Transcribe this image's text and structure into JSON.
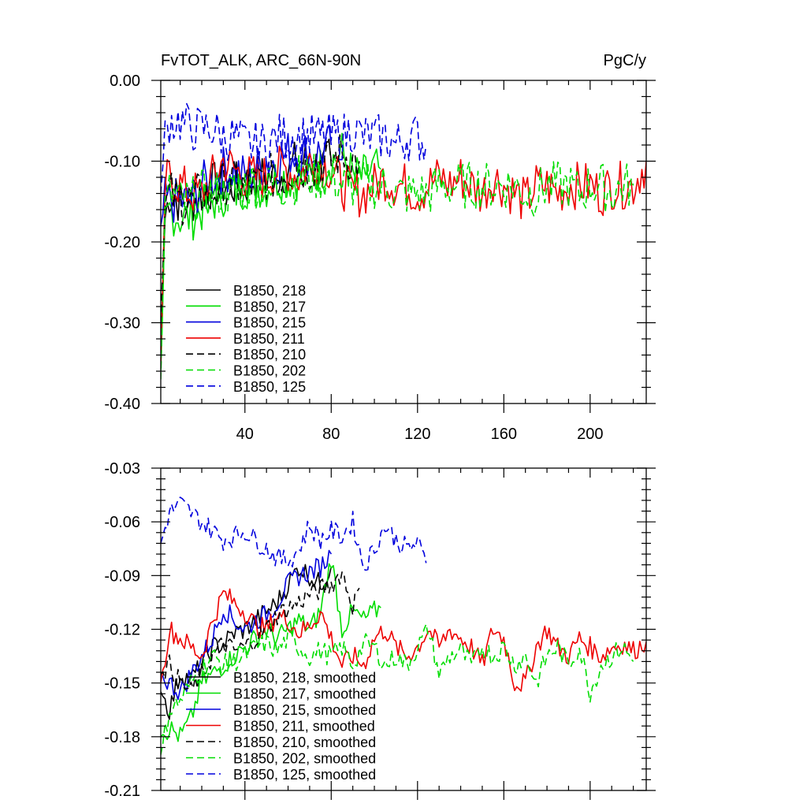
{
  "chart_data": [
    {
      "type": "line",
      "title": "FvTOT_ALK, ARC_66N-90N",
      "units": "PgC/y",
      "xlabel": "",
      "ylabel": "",
      "xlim": [
        1,
        226
      ],
      "ylim": [
        -0.4,
        0.0
      ],
      "xticks": [
        40,
        80,
        120,
        160,
        200
      ],
      "xtick_labels": [
        "40",
        "80",
        "120",
        "160",
        "200"
      ],
      "yticks": [
        0.0,
        -0.1,
        -0.2,
        -0.3,
        -0.4
      ],
      "ytick_labels": [
        "0.00",
        "-0.10",
        "-0.20",
        "-0.30",
        "-0.40"
      ],
      "legend_position": "bottom-left",
      "series": [
        {
          "name": "B1850, 218",
          "color": "#000000",
          "dash": "solid",
          "x": [
            1,
            3,
            5,
            10,
            15,
            20,
            25,
            30,
            35,
            40,
            45,
            50,
            55,
            60,
            65,
            70,
            75,
            80
          ],
          "y": [
            -0.33,
            -0.17,
            -0.14,
            -0.15,
            -0.15,
            -0.14,
            -0.13,
            -0.13,
            -0.13,
            -0.13,
            -0.12,
            -0.12,
            -0.12,
            -0.11,
            -0.1,
            -0.1,
            -0.11,
            -0.1
          ]
        },
        {
          "name": "B1850, 217",
          "color": "#00dd00",
          "dash": "solid",
          "x": [
            1,
            3,
            5,
            10,
            15,
            20,
            25,
            30,
            35,
            40,
            45,
            50,
            55,
            60,
            65,
            70,
            75,
            80,
            85,
            90,
            95,
            100,
            103
          ],
          "y": [
            -0.36,
            -0.18,
            -0.16,
            -0.17,
            -0.17,
            -0.16,
            -0.15,
            -0.14,
            -0.14,
            -0.13,
            -0.13,
            -0.13,
            -0.12,
            -0.12,
            -0.12,
            -0.12,
            -0.11,
            -0.1,
            -0.09,
            -0.12,
            -0.12,
            -0.11,
            -0.11
          ]
        },
        {
          "name": "B1850, 215",
          "color": "#0000dd",
          "dash": "solid",
          "x": [
            1,
            3,
            5,
            10,
            15,
            20,
            25,
            30,
            35,
            40,
            45,
            50,
            55,
            60,
            65,
            70,
            75,
            80
          ],
          "y": [
            -0.18,
            -0.15,
            -0.15,
            -0.15,
            -0.15,
            -0.13,
            -0.12,
            -0.11,
            -0.11,
            -0.12,
            -0.11,
            -0.1,
            -0.1,
            -0.09,
            -0.09,
            -0.09,
            -0.09,
            -0.08
          ]
        },
        {
          "name": "B1850, 211",
          "color": "#ee0000",
          "dash": "solid",
          "x": [
            1,
            3,
            5,
            10,
            15,
            20,
            25,
            30,
            35,
            40,
            45,
            50,
            55,
            60,
            65,
            70,
            75,
            80,
            85,
            90,
            95,
            100,
            105,
            110,
            115,
            120,
            125,
            130,
            135,
            140,
            145,
            150,
            155,
            160,
            165,
            170,
            175,
            180,
            185,
            190,
            195,
            200,
            205,
            210,
            215,
            220,
            226
          ],
          "y": [
            -0.35,
            -0.13,
            -0.12,
            -0.13,
            -0.14,
            -0.14,
            -0.12,
            -0.1,
            -0.11,
            -0.12,
            -0.12,
            -0.12,
            -0.11,
            -0.11,
            -0.12,
            -0.1,
            -0.1,
            -0.11,
            -0.13,
            -0.14,
            -0.14,
            -0.13,
            -0.12,
            -0.13,
            -0.13,
            -0.14,
            -0.13,
            -0.12,
            -0.13,
            -0.12,
            -0.13,
            -0.14,
            -0.12,
            -0.13,
            -0.14,
            -0.15,
            -0.13,
            -0.13,
            -0.14,
            -0.13,
            -0.13,
            -0.13,
            -0.14,
            -0.13,
            -0.13,
            -0.13,
            -0.1
          ]
        },
        {
          "name": "B1850, 210",
          "color": "#000000",
          "dash": "dashed",
          "x": [
            1,
            3,
            5,
            10,
            15,
            20,
            25,
            30,
            35,
            40,
            45,
            50,
            55,
            60,
            65,
            70,
            75,
            80,
            85,
            90,
            93
          ],
          "y": [
            -0.3,
            -0.16,
            -0.14,
            -0.15,
            -0.15,
            -0.14,
            -0.14,
            -0.13,
            -0.13,
            -0.13,
            -0.13,
            -0.12,
            -0.12,
            -0.11,
            -0.11,
            -0.11,
            -0.1,
            -0.1,
            -0.09,
            -0.1,
            -0.1
          ]
        },
        {
          "name": "B1850, 202",
          "color": "#00dd00",
          "dash": "dashed",
          "x": [
            1,
            3,
            5,
            10,
            15,
            20,
            25,
            30,
            35,
            40,
            45,
            50,
            55,
            60,
            65,
            70,
            75,
            80,
            85,
            90,
            95,
            100,
            105,
            110,
            115,
            120,
            125,
            130,
            135,
            140,
            145,
            150,
            155,
            160,
            165,
            170,
            175,
            180,
            185,
            190,
            195,
            200,
            205,
            210,
            215,
            220
          ],
          "y": [
            -0.37,
            -0.16,
            -0.14,
            -0.15,
            -0.15,
            -0.14,
            -0.14,
            -0.14,
            -0.14,
            -0.13,
            -0.13,
            -0.13,
            -0.13,
            -0.13,
            -0.12,
            -0.12,
            -0.12,
            -0.12,
            -0.13,
            -0.13,
            -0.13,
            -0.13,
            -0.13,
            -0.14,
            -0.14,
            -0.14,
            -0.14,
            -0.13,
            -0.13,
            -0.13,
            -0.13,
            -0.13,
            -0.13,
            -0.13,
            -0.13,
            -0.14,
            -0.14,
            -0.13,
            -0.13,
            -0.13,
            -0.14,
            -0.13,
            -0.13,
            -0.14,
            -0.13,
            -0.13
          ]
        },
        {
          "name": "B1850, 125",
          "color": "#0000dd",
          "dash": "dashed",
          "x": [
            1,
            3,
            5,
            10,
            15,
            20,
            25,
            30,
            35,
            40,
            45,
            50,
            55,
            60,
            65,
            70,
            75,
            80,
            85,
            90,
            95,
            100,
            105,
            110,
            115,
            120,
            124
          ],
          "y": [
            -0.14,
            -0.07,
            -0.05,
            -0.05,
            -0.06,
            -0.06,
            -0.06,
            -0.07,
            -0.07,
            -0.08,
            -0.08,
            -0.08,
            -0.07,
            -0.07,
            -0.07,
            -0.07,
            -0.07,
            -0.07,
            -0.07,
            -0.06,
            -0.07,
            -0.07,
            -0.07,
            -0.08,
            -0.07,
            -0.07,
            -0.08
          ]
        }
      ]
    },
    {
      "type": "line",
      "title": "",
      "xlabel": "",
      "ylabel": "",
      "xlim": [
        1,
        226
      ],
      "ylim": [
        -0.21,
        -0.03
      ],
      "yticks": [
        -0.03,
        -0.06,
        -0.09,
        -0.12,
        -0.15,
        -0.18,
        -0.21
      ],
      "ytick_labels": [
        "-0.03",
        "-0.06",
        "-0.09",
        "-0.12",
        "-0.15",
        "-0.18",
        "-0.21"
      ],
      "legend_position": "bottom-left",
      "series": [
        {
          "name": "B1850, 218, smoothed",
          "color": "#000000",
          "dash": "solid",
          "x": [
            1,
            5,
            10,
            15,
            20,
            25,
            30,
            35,
            40,
            45,
            50,
            55,
            60,
            65,
            70,
            75,
            80
          ],
          "y": [
            -0.155,
            -0.165,
            -0.145,
            -0.148,
            -0.14,
            -0.13,
            -0.128,
            -0.122,
            -0.12,
            -0.115,
            -0.11,
            -0.105,
            -0.095,
            -0.085,
            -0.09,
            -0.095,
            -0.085
          ]
        },
        {
          "name": "B1850, 217, smoothed",
          "color": "#00dd00",
          "dash": "solid",
          "x": [
            1,
            5,
            10,
            15,
            20,
            25,
            30,
            35,
            40,
            45,
            50,
            55,
            60,
            65,
            70,
            75,
            80,
            85,
            90,
            95,
            100,
            103
          ],
          "y": [
            -0.18,
            -0.175,
            -0.18,
            -0.17,
            -0.15,
            -0.145,
            -0.14,
            -0.135,
            -0.13,
            -0.125,
            -0.12,
            -0.125,
            -0.12,
            -0.115,
            -0.12,
            -0.11,
            -0.08,
            -0.12,
            -0.11,
            -0.115,
            -0.11,
            -0.108
          ]
        },
        {
          "name": "B1850, 215, smoothed",
          "color": "#0000dd",
          "dash": "solid",
          "x": [
            1,
            5,
            10,
            15,
            20,
            25,
            30,
            35,
            40,
            45,
            50,
            55,
            60,
            65,
            70,
            75,
            80
          ],
          "y": [
            -0.145,
            -0.15,
            -0.155,
            -0.145,
            -0.135,
            -0.125,
            -0.108,
            -0.115,
            -0.12,
            -0.115,
            -0.112,
            -0.105,
            -0.095,
            -0.09,
            -0.088,
            -0.085,
            -0.078
          ]
        },
        {
          "name": "B1850, 211, smoothed",
          "color": "#ee0000",
          "dash": "solid",
          "x": [
            1,
            5,
            10,
            15,
            20,
            25,
            30,
            35,
            40,
            45,
            50,
            55,
            60,
            65,
            70,
            75,
            80,
            85,
            90,
            95,
            100,
            105,
            110,
            115,
            120,
            125,
            130,
            135,
            140,
            145,
            150,
            155,
            160,
            165,
            170,
            175,
            180,
            185,
            190,
            195,
            200,
            205,
            210,
            215,
            220,
            226
          ],
          "y": [
            -0.15,
            -0.12,
            -0.125,
            -0.13,
            -0.135,
            -0.115,
            -0.1,
            -0.105,
            -0.11,
            -0.118,
            -0.12,
            -0.112,
            -0.115,
            -0.122,
            -0.118,
            -0.11,
            -0.125,
            -0.14,
            -0.135,
            -0.14,
            -0.125,
            -0.12,
            -0.13,
            -0.135,
            -0.13,
            -0.12,
            -0.13,
            -0.12,
            -0.125,
            -0.13,
            -0.14,
            -0.12,
            -0.125,
            -0.15,
            -0.15,
            -0.13,
            -0.12,
            -0.13,
            -0.135,
            -0.125,
            -0.13,
            -0.135,
            -0.13,
            -0.128,
            -0.132,
            -0.127
          ]
        },
        {
          "name": "B1850, 210, smoothed",
          "color": "#000000",
          "dash": "dashed",
          "x": [
            1,
            5,
            10,
            15,
            20,
            25,
            30,
            35,
            40,
            45,
            50,
            55,
            60,
            65,
            70,
            75,
            80,
            85,
            90,
            93
          ],
          "y": [
            -0.145,
            -0.14,
            -0.15,
            -0.155,
            -0.145,
            -0.135,
            -0.128,
            -0.132,
            -0.13,
            -0.125,
            -0.12,
            -0.112,
            -0.108,
            -0.105,
            -0.1,
            -0.098,
            -0.095,
            -0.088,
            -0.107,
            -0.097
          ]
        },
        {
          "name": "B1850, 202, smoothed",
          "color": "#00dd00",
          "dash": "dashed",
          "x": [
            1,
            5,
            10,
            15,
            20,
            25,
            30,
            35,
            40,
            45,
            50,
            55,
            60,
            65,
            70,
            75,
            80,
            85,
            90,
            95,
            100,
            105,
            110,
            115,
            120,
            125,
            130,
            135,
            140,
            145,
            150,
            155,
            160,
            165,
            170,
            175,
            180,
            185,
            190,
            195,
            200,
            205,
            210,
            215,
            220
          ],
          "y": [
            -0.19,
            -0.165,
            -0.16,
            -0.15,
            -0.142,
            -0.135,
            -0.14,
            -0.138,
            -0.135,
            -0.13,
            -0.128,
            -0.132,
            -0.125,
            -0.13,
            -0.135,
            -0.132,
            -0.135,
            -0.13,
            -0.14,
            -0.128,
            -0.13,
            -0.14,
            -0.135,
            -0.14,
            -0.13,
            -0.12,
            -0.145,
            -0.135,
            -0.132,
            -0.14,
            -0.13,
            -0.135,
            -0.13,
            -0.14,
            -0.135,
            -0.15,
            -0.135,
            -0.13,
            -0.14,
            -0.13,
            -0.155,
            -0.14,
            -0.135,
            -0.13,
            -0.138
          ]
        },
        {
          "name": "B1850, 125, smoothed",
          "color": "#0000dd",
          "dash": "dashed",
          "x": [
            1,
            5,
            10,
            15,
            20,
            25,
            30,
            35,
            40,
            45,
            50,
            55,
            60,
            65,
            70,
            75,
            80,
            85,
            90,
            95,
            100,
            105,
            110,
            115,
            120,
            124
          ],
          "y": [
            -0.072,
            -0.055,
            -0.05,
            -0.055,
            -0.06,
            -0.065,
            -0.07,
            -0.068,
            -0.065,
            -0.07,
            -0.075,
            -0.08,
            -0.082,
            -0.075,
            -0.062,
            -0.07,
            -0.065,
            -0.068,
            -0.06,
            -0.085,
            -0.075,
            -0.062,
            -0.07,
            -0.075,
            -0.072,
            -0.083
          ]
        }
      ]
    }
  ]
}
